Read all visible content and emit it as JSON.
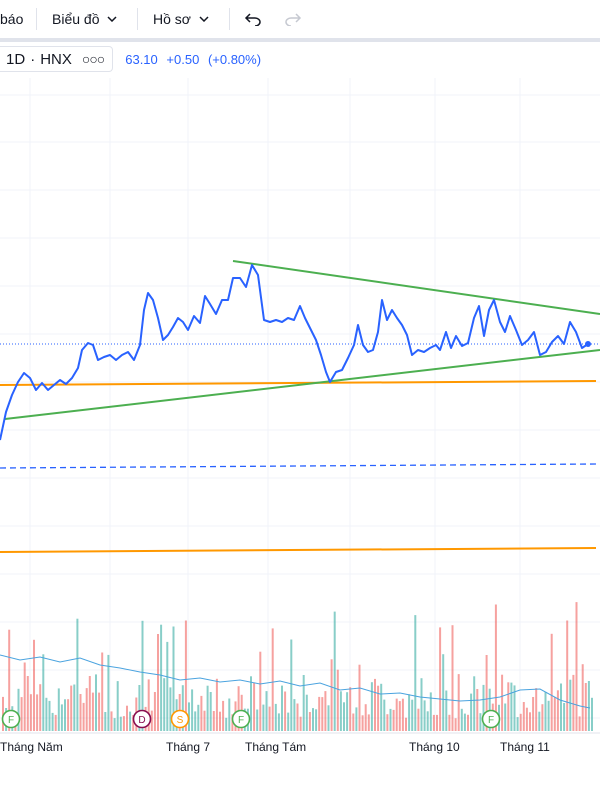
{
  "toolbar": {
    "alert_label": "báo",
    "chart_menu_label": "Biểu đồ",
    "profile_menu_label": "Hồ sơ",
    "undo_icon": "undo-icon",
    "redo_icon": "redo-icon",
    "chevron_icon": "chevron-down-icon"
  },
  "legend": {
    "interval": "1D",
    "separator": "·",
    "exchange": "HNX",
    "more_icon": "ellipsis-icon",
    "last_price": "63.10",
    "change": "+0.50",
    "change_percent": "(+0.80%)",
    "change_color": "#2962ff"
  },
  "colors": {
    "price_line": "#2962ff",
    "trendline": "#4caf50",
    "horizontal_line": "#ff9800",
    "volume_up": "#26a69a",
    "volume_down": "#ef5350",
    "volume_ma": "#4aa3df"
  },
  "x_axis": {
    "labels": [
      "Tháng Năm",
      "Tháng 7",
      "Tháng Tám",
      "Tháng 10",
      "Tháng 11"
    ]
  },
  "event_markers": [
    {
      "letter": "F",
      "kind": "financial",
      "color": "#4caf50"
    },
    {
      "letter": "D",
      "kind": "dividend",
      "color": "#880e4f"
    },
    {
      "letter": "S",
      "kind": "split",
      "color": "#ff9800"
    },
    {
      "letter": "F",
      "kind": "financial",
      "color": "#4caf50"
    },
    {
      "letter": "F",
      "kind": "financial",
      "color": "#4caf50"
    }
  ]
}
